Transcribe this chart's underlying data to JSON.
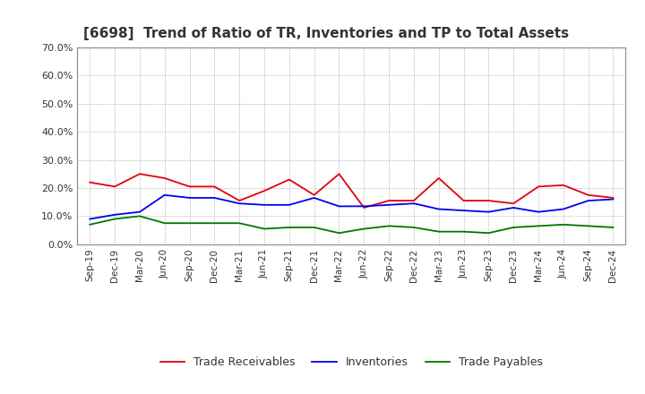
{
  "title": "[6698]  Trend of Ratio of TR, Inventories and TP to Total Assets",
  "x_labels": [
    "Sep-19",
    "Dec-19",
    "Mar-20",
    "Jun-20",
    "Sep-20",
    "Dec-20",
    "Mar-21",
    "Jun-21",
    "Sep-21",
    "Dec-21",
    "Mar-22",
    "Jun-22",
    "Sep-22",
    "Dec-22",
    "Mar-23",
    "Jun-23",
    "Sep-23",
    "Dec-23",
    "Mar-24",
    "Jun-24",
    "Sep-24",
    "Dec-24"
  ],
  "trade_receivables": [
    0.22,
    0.205,
    0.25,
    0.235,
    0.205,
    0.205,
    0.155,
    0.19,
    0.23,
    0.175,
    0.25,
    0.13,
    0.155,
    0.155,
    0.235,
    0.155,
    0.155,
    0.145,
    0.205,
    0.21,
    0.175,
    0.165
  ],
  "inventories": [
    0.09,
    0.105,
    0.115,
    0.175,
    0.165,
    0.165,
    0.145,
    0.14,
    0.14,
    0.165,
    0.135,
    0.135,
    0.14,
    0.145,
    0.125,
    0.12,
    0.115,
    0.13,
    0.115,
    0.125,
    0.155,
    0.16
  ],
  "trade_payables": [
    0.07,
    0.09,
    0.1,
    0.075,
    0.075,
    0.075,
    0.075,
    0.055,
    0.06,
    0.06,
    0.04,
    0.055,
    0.065,
    0.06,
    0.045,
    0.045,
    0.04,
    0.06,
    0.065,
    0.07,
    0.065,
    0.06
  ],
  "tr_color": "#e00010",
  "inv_color": "#0000ee",
  "tp_color": "#007700",
  "ylim": [
    0.0,
    0.7
  ],
  "yticks": [
    0.0,
    0.1,
    0.2,
    0.3,
    0.4,
    0.5,
    0.6,
    0.7
  ],
  "background_color": "#ffffff",
  "grid_color": "#999999",
  "title_color": "#333333",
  "legend_labels": [
    "Trade Receivables",
    "Inventories",
    "Trade Payables"
  ]
}
